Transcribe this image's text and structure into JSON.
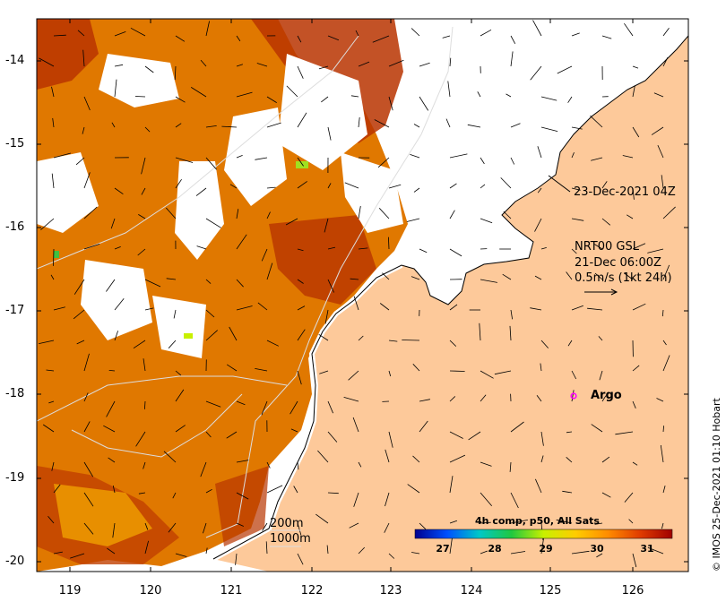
{
  "map": {
    "lon_ticks": [
      "119",
      "120",
      "121",
      "122",
      "123",
      "124",
      "125",
      "126"
    ],
    "lat_ticks": [
      "-14",
      "-15",
      "-16",
      "-17",
      "-18",
      "-19",
      "-20"
    ],
    "lon_range": [
      118.6,
      126.7
    ],
    "lat_range": [
      -20.1,
      -13.5
    ],
    "land_color": "#fdc99a",
    "sst_colors": [
      "#b83400",
      "#cf5a00",
      "#e07800",
      "#ef9000"
    ]
  },
  "annotations": {
    "snapshot_time": "23-Dec-2021 04Z",
    "current_source": "NRT00 GSL",
    "current_time": "21-Dec 06:00Z",
    "current_scale": "0.5m/s (1kt 24h)",
    "argo_label": "Argo",
    "contour_200": "200m",
    "contour_1000": "1000m"
  },
  "colorbar": {
    "title": "4h comp, p50, All Sats",
    "ticks": [
      "27",
      "28",
      "29",
      "30",
      "31"
    ],
    "colors": [
      "#00008f",
      "#0050ff",
      "#00c8c8",
      "#20c840",
      "#c8f000",
      "#ffcc00",
      "#ff8c00",
      "#e03c00",
      "#a00000"
    ]
  },
  "credit": "© IMOS 25-Dec-2021 01:10 Hobart"
}
